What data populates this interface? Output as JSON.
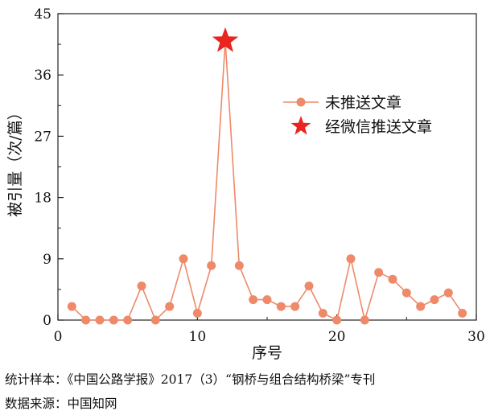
{
  "chart_data": {
    "type": "line",
    "title": "",
    "xlabel": "序号",
    "ylabel": "被引量（次/篇）",
    "xlim": [
      0,
      30
    ],
    "ylim": [
      0,
      45
    ],
    "x_ticks": [
      0,
      10,
      20,
      30
    ],
    "y_ticks": [
      0,
      9,
      18,
      27,
      36,
      45
    ],
    "grid": false,
    "legend_position": "right",
    "series": [
      {
        "name": "未推送文章",
        "marker": "circle",
        "color": "#ee8a69",
        "x": [
          1,
          2,
          3,
          4,
          5,
          6,
          7,
          8,
          9,
          10,
          11,
          12,
          13,
          14,
          15,
          16,
          17,
          18,
          19,
          20,
          21,
          22,
          23,
          24,
          25,
          26,
          27,
          28,
          29
        ],
        "y": [
          2,
          0,
          0,
          0,
          0,
          5,
          0,
          2,
          9,
          1,
          8,
          41,
          8,
          3,
          3,
          2,
          2,
          5,
          1,
          0,
          9,
          0,
          7,
          6,
          4,
          2,
          3,
          4,
          1
        ]
      },
      {
        "name": "经微信推送文章",
        "marker": "star",
        "color": "#e8261f",
        "x": [
          12
        ],
        "y": [
          41
        ]
      }
    ]
  },
  "captions": {
    "line1": "统计样本：《中国公路学报》2017（3）“钢桥与组合结构桥梁”专刊",
    "line2": "数据来源：中国知网"
  }
}
